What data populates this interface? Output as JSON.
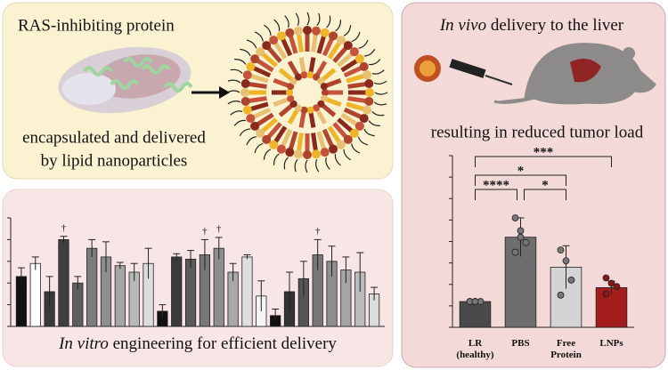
{
  "top_panel": {
    "heading": "RAS-inhibiting protein",
    "caption_line1": "encapsulated and delivered",
    "caption_line2": "by lipid nanoparticles"
  },
  "right_panel": {
    "heading_italic": "In vivo",
    "heading_rest": " delivery to the liver",
    "subheading": "resulting in reduced tumor load"
  },
  "bottom_panel": {
    "caption_italic": "In vitro",
    "caption_rest": " engineering for efficient delivery"
  },
  "chart_data": [
    {
      "type": "bar",
      "ylim": [
        0,
        5
      ],
      "yticks": [
        0,
        1,
        2,
        3,
        4,
        5
      ],
      "values": [
        2.3,
        2.9,
        1.6,
        4.0,
        2.0,
        3.6,
        3.2,
        2.8,
        2.5,
        2.9,
        0.7,
        3.2,
        3.1,
        3.3,
        3.6,
        2.5,
        3.2,
        1.4,
        0.5,
        1.6,
        2.2,
        3.3,
        3.0,
        2.6,
        2.5,
        1.5
      ],
      "errors": [
        0.4,
        0.3,
        0.7,
        0.15,
        0.3,
        0.4,
        0.7,
        0.15,
        0.4,
        0.7,
        0.3,
        0.15,
        0.4,
        0.7,
        0.5,
        0.4,
        0.1,
        0.7,
        0.3,
        0.9,
        0.8,
        0.7,
        0.7,
        0.6,
        0.9,
        0.3
      ],
      "colors": [
        "#111111",
        "#ffffff",
        "#3a3a3a",
        "#3f3f3f",
        "#5e5e5e",
        "#7c7c7c",
        "#8e8e8e",
        "#a5a5a5",
        "#b8b8b8",
        "#dcdcdc",
        "#111111",
        "#3a3a3a",
        "#5a5a5a",
        "#777777",
        "#8e8e8e",
        "#a8a8a8",
        "#dedede",
        "#f4f4f4",
        "#111111",
        "#333333",
        "#555555",
        "#777777",
        "#8e8e8e",
        "#a5a5a5",
        "#bcbcbc",
        "#dcdcdc"
      ],
      "bar_annotations": [
        null,
        null,
        null,
        "†",
        null,
        null,
        null,
        null,
        null,
        null,
        null,
        null,
        null,
        "†",
        "†",
        null,
        null,
        null,
        null,
        null,
        null,
        "†",
        null,
        null,
        null,
        null
      ]
    },
    {
      "type": "bar",
      "categories": [
        "LR (healthy)",
        "PBS",
        "Free Protein",
        "LNPs"
      ],
      "values": [
        1.2,
        4.2,
        2.8,
        1.85
      ],
      "errors": [
        0.05,
        0.9,
        1.0,
        0.3
      ],
      "colors": [
        "#4a4a4a",
        "#6e6e6e",
        "#d4d4d4",
        "#a31d1d"
      ],
      "points": [
        [
          1.2,
          1.2,
          1.2,
          1.2,
          1.2
        ],
        [
          5.1,
          4.2,
          3.95,
          3.5,
          4.5
        ],
        [
          3.6,
          3.1,
          2.2,
          1.5
        ],
        [
          2.3,
          2.05,
          1.9,
          1.55
        ]
      ],
      "ylim": [
        0,
        8
      ],
      "yticks": [
        0,
        1,
        2,
        3,
        4,
        5,
        6,
        7,
        8
      ],
      "significance": [
        "***",
        "*",
        "****",
        "*"
      ]
    }
  ]
}
